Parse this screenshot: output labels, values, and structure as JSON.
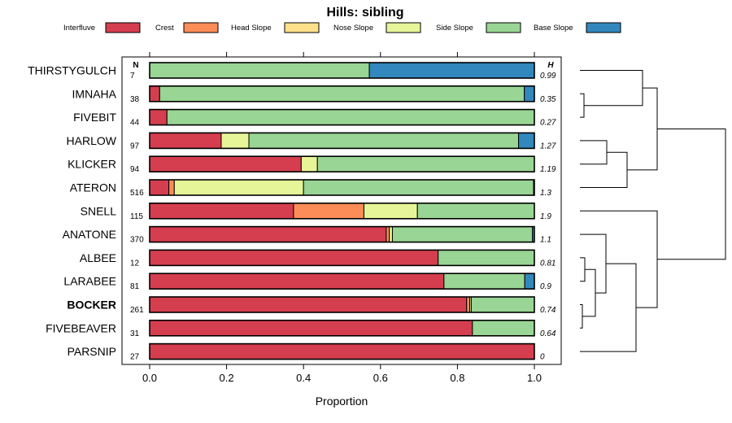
{
  "chart_data": {
    "type": "bar",
    "orientation": "horizontal-stacked",
    "title": "Hills: sibling",
    "xlabel": "Proportion",
    "xlim": [
      0,
      1
    ],
    "x_ticks": [
      "0.0",
      "0.2",
      "0.4",
      "0.6",
      "0.8",
      "1.0"
    ],
    "x_tick_values": [
      0,
      0.2,
      0.4,
      0.6,
      0.8,
      1.0
    ],
    "n_header": "N",
    "h_header": "H",
    "legend": [
      {
        "name": "Interfluve",
        "color": "#d53e4f"
      },
      {
        "name": "Crest",
        "color": "#fc8d59"
      },
      {
        "name": "Head Slope",
        "color": "#fee08b"
      },
      {
        "name": "Nose Slope",
        "color": "#e6f598"
      },
      {
        "name": "Side Slope",
        "color": "#99d594"
      },
      {
        "name": "Base Slope",
        "color": "#3288bd"
      }
    ],
    "categories": [
      "THIRSTYGULCH",
      "IMNAHA",
      "FIVEBIT",
      "HARLOW",
      "KLICKER",
      "ATERON",
      "SNELL",
      "ANATONE",
      "ALBEE",
      "LARABEE",
      "BOCKER",
      "FIVEBEAVER",
      "PARSNIP"
    ],
    "highlight": "BOCKER",
    "n": [
      "7",
      "38",
      "44",
      "97",
      "94",
      "516",
      "115",
      "370",
      "12",
      "81",
      "261",
      "31",
      "27"
    ],
    "h": [
      "0.99",
      "0.35",
      "0.27",
      "1.27",
      "1.19",
      "1.3",
      "1.9",
      "1.1",
      "0.81",
      "0.9",
      "0.74",
      "0.64",
      "0"
    ],
    "series": [
      {
        "name": "Interfluve",
        "values": [
          0,
          0.026,
          0.045,
          0.186,
          0.394,
          0.05,
          0.374,
          0.615,
          0.75,
          0.765,
          0.824,
          0.839,
          1.0
        ]
      },
      {
        "name": "Crest",
        "values": [
          0,
          0,
          0,
          0,
          0,
          0.014,
          0.183,
          0.008,
          0,
          0,
          0.008,
          0,
          0
        ]
      },
      {
        "name": "Head Slope",
        "values": [
          0,
          0,
          0,
          0,
          0,
          0,
          0,
          0,
          0,
          0,
          0,
          0,
          0
        ]
      },
      {
        "name": "Nose Slope",
        "values": [
          0,
          0,
          0,
          0.072,
          0.042,
          0.336,
          0.139,
          0.008,
          0,
          0,
          0.004,
          0,
          0
        ]
      },
      {
        "name": "Side Slope",
        "values": [
          0.571,
          0.948,
          0.955,
          0.701,
          0.564,
          0.598,
          0.304,
          0.364,
          0.25,
          0.21,
          0.164,
          0.161,
          0
        ]
      },
      {
        "name": "Base Slope",
        "values": [
          0.429,
          0.026,
          0,
          0.041,
          0,
          0.002,
          0,
          0.005,
          0,
          0.025,
          0,
          0,
          0
        ]
      }
    ],
    "dendrogram": "hierarchical clustering of rows shown at right"
  }
}
